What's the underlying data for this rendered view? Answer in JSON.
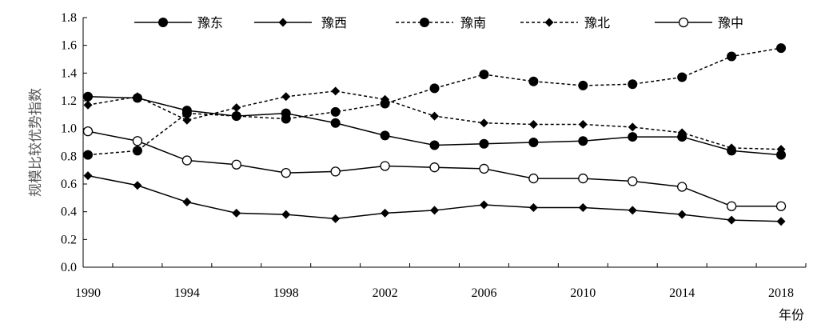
{
  "chart_data": {
    "type": "line",
    "x": [
      1990,
      1992,
      1994,
      1996,
      1998,
      2000,
      2002,
      2004,
      2006,
      2008,
      2010,
      2012,
      2014,
      2016,
      2018
    ],
    "xticks": [
      "1990",
      "1994",
      "1998",
      "2002",
      "2006",
      "2010",
      "2014",
      "2018"
    ],
    "xlabel": "年份",
    "ylabel": "规模比较优势指数",
    "ylim": [
      0,
      1.8
    ],
    "yticks": [
      "0.0",
      "0.2",
      "0.4",
      "0.6",
      "0.8",
      "1.0",
      "1.2",
      "1.4",
      "1.6",
      "1.8"
    ],
    "legend_position": "top",
    "series": [
      {
        "name": "豫东",
        "line": "solid",
        "marker": "filled-circle",
        "values": [
          1.23,
          1.22,
          1.13,
          1.09,
          1.11,
          1.04,
          0.95,
          0.88,
          0.89,
          0.9,
          0.91,
          0.94,
          0.94,
          0.84,
          0.81
        ]
      },
      {
        "name": "豫西",
        "line": "solid",
        "marker": "diamond",
        "values": [
          0.66,
          0.59,
          0.47,
          0.39,
          0.38,
          0.35,
          0.39,
          0.41,
          0.45,
          0.43,
          0.43,
          0.41,
          0.38,
          0.34,
          0.33
        ]
      },
      {
        "name": "豫南",
        "line": "dashed",
        "marker": "filled-circle",
        "values": [
          0.81,
          0.84,
          1.11,
          1.09,
          1.07,
          1.12,
          1.18,
          1.29,
          1.39,
          1.34,
          1.31,
          1.32,
          1.37,
          1.52,
          1.58
        ]
      },
      {
        "name": "豫北",
        "line": "dashed",
        "marker": "diamond",
        "values": [
          1.17,
          1.23,
          1.06,
          1.15,
          1.23,
          1.27,
          1.21,
          1.09,
          1.04,
          1.03,
          1.03,
          1.01,
          0.97,
          0.86,
          0.85
        ]
      },
      {
        "name": "豫中",
        "line": "solid",
        "marker": "open-circle",
        "values": [
          0.98,
          0.91,
          0.77,
          0.74,
          0.68,
          0.69,
          0.73,
          0.72,
          0.71,
          0.64,
          0.64,
          0.62,
          0.58,
          0.44,
          0.44
        ]
      }
    ]
  }
}
